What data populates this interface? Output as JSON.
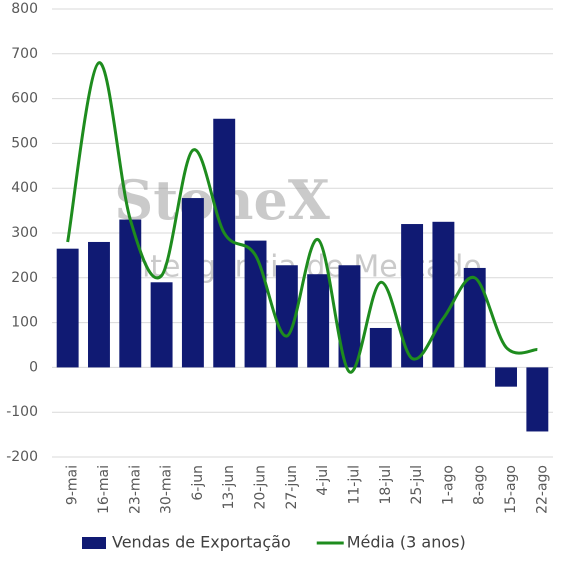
{
  "chart_data": {
    "type": "bar",
    "watermark": {
      "title": "StoneX",
      "subtitle": "Inteligência de Mercado"
    },
    "categories": [
      "9-mai",
      "16-mai",
      "23-mai",
      "30-mai",
      "6-jun",
      "13-jun",
      "20-jun",
      "27-jun",
      "4-jul",
      "11-jul",
      "18-jul",
      "25-jul",
      "1-ago",
      "8-ago",
      "15-ago",
      "22-ago"
    ],
    "series": [
      {
        "name": "Vendas de Exportação",
        "type": "bar",
        "color": "#101a73",
        "values": [
          265,
          280,
          330,
          190,
          378,
          555,
          283,
          228,
          208,
          228,
          88,
          320,
          325,
          222,
          -43,
          -143
        ]
      },
      {
        "name": "Média (3 anos)",
        "type": "line",
        "color": "#1e8c1e",
        "values": [
          280,
          680,
          330,
          205,
          485,
          300,
          250,
          70,
          285,
          -10,
          190,
          20,
          110,
          200,
          45,
          40
        ]
      }
    ],
    "ylim": [
      -200,
      800
    ],
    "yticks": [
      -200,
      -100,
      0,
      100,
      200,
      300,
      400,
      500,
      600,
      700,
      800
    ],
    "grid": true,
    "legend": "bottom"
  }
}
